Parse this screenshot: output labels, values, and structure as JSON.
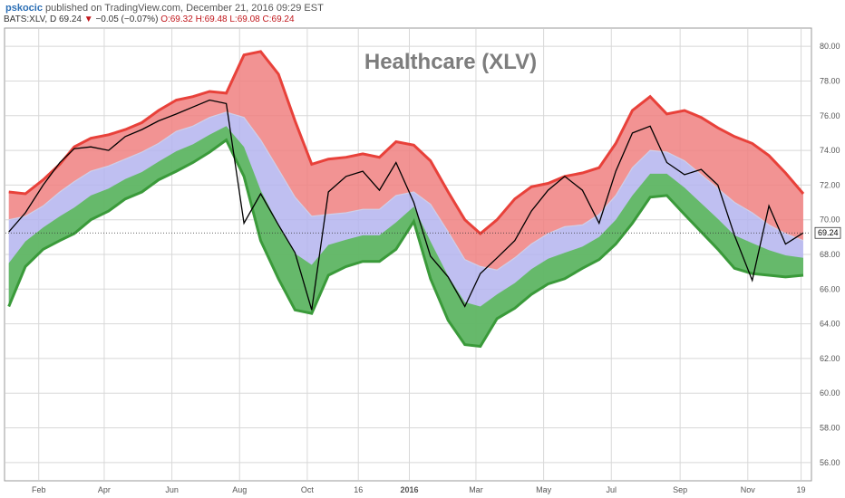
{
  "header": {
    "username": "pskocic",
    "published": "published on TradingView.com, December 21, 2016 09:29 EST",
    "symbol": "BATS:XLV, D",
    "last": "69.24",
    "down_arrow": "▼",
    "change": "−0.05 (−0.07%)",
    "open": "O:69.32",
    "high": "H:69.48",
    "low": "L:69.08",
    "close": "C:69.24"
  },
  "chart_data": {
    "type": "line",
    "title": "Healthcare (XLV)",
    "x_tick_labels": [
      "Feb",
      "Apr",
      "Jun",
      "Aug",
      "Oct",
      "16",
      "2016",
      "Mar",
      "May",
      "Jul",
      "Sep",
      "Nov",
      "19"
    ],
    "y_tick_labels": [
      "56.00",
      "58.00",
      "60.00",
      "62.00",
      "64.00",
      "66.00",
      "68.00",
      "70.00",
      "72.00",
      "74.00",
      "76.00",
      "78.00",
      "80.00"
    ],
    "ylim": [
      55,
      81
    ],
    "grid": true,
    "last_price_label": "69.24",
    "last_price": 69.24,
    "x": [
      "2015-01-05",
      "2015-01-20",
      "2015-02-05",
      "2015-02-20",
      "2015-03-05",
      "2015-03-20",
      "2015-04-05",
      "2015-04-20",
      "2015-05-05",
      "2015-05-20",
      "2015-06-05",
      "2015-06-20",
      "2015-07-05",
      "2015-07-20",
      "2015-08-05",
      "2015-08-20",
      "2015-09-05",
      "2015-09-20",
      "2015-10-05",
      "2015-10-20",
      "2015-11-05",
      "2015-11-20",
      "2015-12-05",
      "2015-12-20",
      "2016-01-05",
      "2016-01-20",
      "2016-02-05",
      "2016-02-20",
      "2016-03-05",
      "2016-03-20",
      "2016-04-05",
      "2016-04-20",
      "2016-05-05",
      "2016-05-20",
      "2016-06-05",
      "2016-06-20",
      "2016-07-05",
      "2016-07-20",
      "2016-08-05",
      "2016-08-20",
      "2016-09-05",
      "2016-09-20",
      "2016-10-05",
      "2016-10-20",
      "2016-11-05",
      "2016-11-20",
      "2016-12-05",
      "2016-12-21"
    ],
    "series": [
      {
        "role": "upper",
        "color": "#e8413a",
        "values": [
          71.6,
          71.5,
          72.3,
          73.2,
          74.2,
          74.7,
          74.9,
          75.2,
          75.6,
          76.3,
          76.9,
          77.1,
          77.4,
          77.3,
          79.5,
          79.7,
          78.4,
          75.7,
          73.2,
          73.5,
          73.6,
          73.8,
          73.6,
          74.5,
          74.3,
          73.4,
          71.6,
          70.0,
          69.2,
          70.0,
          71.2,
          71.9,
          72.1,
          72.5,
          72.7,
          73.0,
          74.4,
          76.3,
          77.1,
          76.1,
          76.3,
          75.9,
          75.3,
          74.8,
          74.4,
          73.7,
          72.7,
          71.5
        ]
      },
      {
        "role": "mid",
        "color": "#a8a8d8",
        "values": [
          70.0,
          70.2,
          70.8,
          71.6,
          72.2,
          72.8,
          73.1,
          73.5,
          73.9,
          74.4,
          75.1,
          75.4,
          75.9,
          76.2,
          75.9,
          74.6,
          72.9,
          71.3,
          70.2,
          70.3,
          70.4,
          70.6,
          70.6,
          71.4,
          71.6,
          70.9,
          69.3,
          67.7,
          67.3,
          67.1,
          67.8,
          68.6,
          69.2,
          69.6,
          69.7,
          70.3,
          71.4,
          73.0,
          74.0,
          73.9,
          73.4,
          72.6,
          71.8,
          71.0,
          70.4,
          69.7,
          69.2,
          68.8
        ]
      },
      {
        "role": "lower",
        "color": "#3a9a3a",
        "values": [
          65.0,
          67.3,
          68.3,
          68.8,
          69.2,
          70.0,
          70.5,
          71.2,
          71.6,
          72.3,
          72.8,
          73.3,
          73.9,
          74.6,
          72.5,
          68.8,
          66.6,
          64.8,
          64.6,
          66.8,
          67.3,
          67.6,
          67.6,
          68.3,
          69.9,
          66.6,
          64.2,
          62.8,
          62.7,
          64.3,
          64.9,
          65.7,
          66.3,
          66.6,
          67.2,
          67.7,
          68.6,
          69.8,
          71.3,
          71.4,
          70.3,
          69.3,
          68.3,
          67.2,
          66.9,
          66.8,
          66.7,
          66.8
        ]
      },
      {
        "role": "price",
        "color": "#000000",
        "values": [
          69.3,
          70.4,
          72.0,
          73.3,
          74.1,
          74.2,
          74.0,
          74.8,
          75.2,
          75.7,
          76.1,
          76.5,
          76.9,
          76.7,
          69.8,
          71.5,
          69.7,
          68.1,
          64.8,
          71.6,
          72.5,
          72.8,
          71.7,
          73.3,
          71.0,
          67.9,
          66.7,
          65.0,
          66.9,
          67.8,
          68.8,
          70.5,
          71.7,
          72.5,
          71.7,
          69.8,
          72.8,
          75.0,
          75.4,
          73.3,
          72.6,
          72.9,
          72.0,
          69.1,
          66.5,
          70.8,
          68.6,
          69.24
        ]
      }
    ]
  }
}
